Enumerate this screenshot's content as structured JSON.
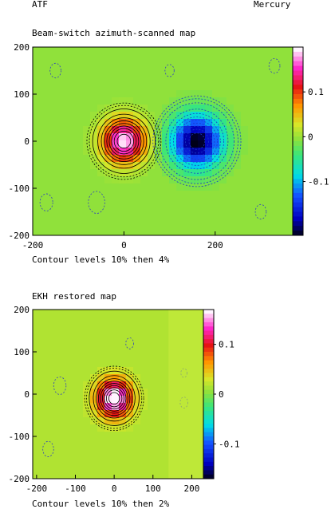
{
  "header": {
    "left": "ATF",
    "right": "Mercury"
  },
  "chart_data": [
    {
      "type": "heatmap",
      "title": "Beam-switch azimuth-scanned map",
      "caption": "Contour levels 10% then 4%",
      "xlim": [
        -200,
        370
      ],
      "ylim": [
        -200,
        200
      ],
      "xticks": [
        -200,
        0,
        200
      ],
      "yticks": [
        200,
        100,
        0,
        -100,
        -200
      ],
      "colorbar_ticks": [
        0.1,
        0,
        -0.1
      ],
      "colorbar_range": [
        -0.22,
        0.2
      ],
      "background_value": 0.0,
      "sources": [
        {
          "label": "positive beam",
          "x": 0,
          "y": 0,
          "peak": 0.2,
          "sigma": 32
        },
        {
          "label": "negative beam",
          "x": 160,
          "y": 0,
          "peak": -0.22,
          "sigma": 38
        }
      ],
      "contours": "10% then 4%"
    },
    {
      "type": "heatmap",
      "title": "EKH restored  map",
      "caption": "Contour levels 10% then 2%",
      "xlim": [
        -210,
        230
      ],
      "ylim": [
        -200,
        200
      ],
      "xticks": [
        -200,
        -100,
        0,
        100,
        200
      ],
      "yticks": [
        200,
        100,
        0,
        -100,
        -200
      ],
      "colorbar_ticks": [
        0.1,
        0,
        -0.1
      ],
      "colorbar_range": [
        -0.17,
        0.17
      ],
      "background_value": 0.02,
      "sources": [
        {
          "label": "restored source",
          "x": 0,
          "y": -10,
          "peak": 0.17,
          "sigma": 30
        }
      ],
      "contours": "10% then 2%"
    }
  ]
}
